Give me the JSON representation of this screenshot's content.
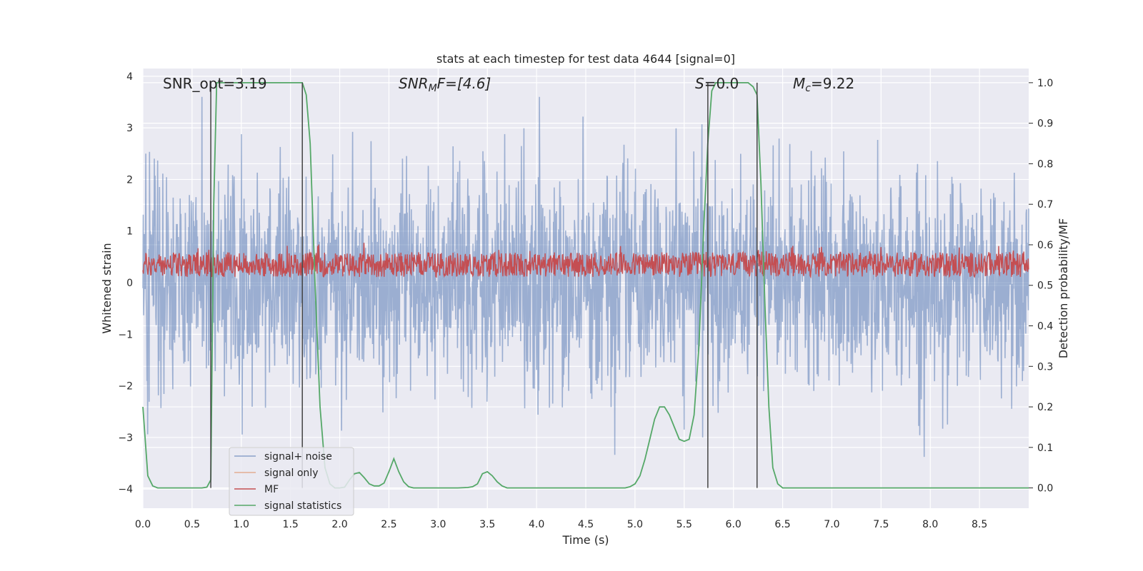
{
  "chart_data": {
    "type": "line",
    "title": "stats at each timestep for test data 4644 [signal=0]",
    "xlabel": "Time (s)",
    "ylabel_left": "Whitened strain",
    "ylabel_right": "Detection probability/MF",
    "xlim": [
      0,
      9.0
    ],
    "ylim_left": [
      -4.37,
      4.15
    ],
    "ylim_right": [
      -0.05,
      1.035
    ],
    "x_ticks": [
      "0.0",
      "0.5",
      "1.0",
      "1.5",
      "2.0",
      "2.5",
      "3.0",
      "3.5",
      "4.0",
      "4.5",
      "5.0",
      "5.5",
      "6.0",
      "6.5",
      "7.0",
      "7.5",
      "8.0",
      "8.5"
    ],
    "y_left_ticks": [
      "4",
      "3",
      "2",
      "1",
      "0",
      "−1",
      "−2",
      "−3",
      "−4"
    ],
    "y_right_ticks": [
      "1.0",
      "0.9",
      "0.8",
      "0.7",
      "0.6",
      "0.5",
      "0.4",
      "0.3",
      "0.2",
      "0.1",
      "0.0"
    ],
    "grid": true,
    "legend_position": "lower-left",
    "annotations": {
      "snr_opt": "SNR_opt=3.19",
      "snr_mf_main": "SNR",
      "snr_mf_sub": "M",
      "snr_mf_rest": "F=[4.6]",
      "s_var": "S",
      "s_rest": "=0.0",
      "mc_var": "M",
      "mc_sub": "c",
      "mc_rest": "=9.22"
    },
    "vertical_lines_x": [
      0.69,
      1.62,
      5.74,
      6.24
    ],
    "series": [
      {
        "name": "signal+ noise",
        "color": "#4c72b0",
        "description_stats": {
          "mean": 0.0,
          "std": 1.0,
          "range": [
            -3.8,
            3.6
          ]
        }
      },
      {
        "name": "signal only",
        "color": "#dd8452"
      },
      {
        "name": "MF",
        "color": "#c44e52",
        "description_stats": {
          "band": [
            0.05,
            0.65
          ]
        }
      },
      {
        "name": "signal statistics",
        "color": "#55a868",
        "x": [
          0.0,
          0.05,
          0.1,
          0.15,
          0.2,
          0.3,
          0.4,
          0.5,
          0.6,
          0.65,
          0.69,
          0.72,
          0.75,
          0.8,
          1.0,
          1.2,
          1.4,
          1.55,
          1.62,
          1.66,
          1.7,
          1.75,
          1.8,
          1.85,
          1.9,
          1.95,
          2.0,
          2.05,
          2.1,
          2.15,
          2.2,
          2.25,
          2.3,
          2.35,
          2.4,
          2.45,
          2.5,
          2.55,
          2.6,
          2.65,
          2.7,
          2.75,
          2.8,
          3.0,
          3.2,
          3.3,
          3.35,
          3.4,
          3.45,
          3.5,
          3.55,
          3.6,
          3.65,
          3.7,
          3.8,
          4.0,
          4.5,
          4.9,
          4.95,
          5.0,
          5.05,
          5.1,
          5.15,
          5.2,
          5.25,
          5.3,
          5.35,
          5.4,
          5.45,
          5.5,
          5.55,
          5.6,
          5.65,
          5.7,
          5.72,
          5.74,
          5.78,
          5.82,
          5.85,
          6.0,
          6.15,
          6.2,
          6.24,
          6.28,
          6.32,
          6.36,
          6.4,
          6.45,
          6.5,
          6.6,
          7.0,
          8.0,
          9.0
        ],
        "y": [
          0.2,
          0.03,
          0.005,
          0.0,
          0.0,
          0.0,
          0.0,
          0.0,
          0.0,
          0.002,
          0.02,
          0.7,
          1.0,
          1.0,
          1.0,
          1.0,
          1.0,
          1.0,
          1.0,
          0.97,
          0.85,
          0.5,
          0.2,
          0.05,
          0.01,
          0.0,
          0.0,
          0.002,
          0.02,
          0.035,
          0.038,
          0.025,
          0.01,
          0.005,
          0.005,
          0.012,
          0.04,
          0.072,
          0.04,
          0.015,
          0.003,
          0.0,
          0.0,
          0.0,
          0.0,
          0.001,
          0.003,
          0.01,
          0.035,
          0.04,
          0.03,
          0.015,
          0.005,
          0.0,
          0.0,
          0.0,
          0.0,
          0.0,
          0.003,
          0.01,
          0.03,
          0.07,
          0.12,
          0.17,
          0.2,
          0.2,
          0.18,
          0.15,
          0.12,
          0.115,
          0.12,
          0.18,
          0.35,
          0.65,
          0.75,
          0.85,
          0.98,
          1.0,
          1.0,
          1.0,
          1.0,
          0.99,
          0.97,
          0.75,
          0.45,
          0.2,
          0.05,
          0.01,
          0.0,
          0.0,
          0.0,
          0.0,
          0.0
        ]
      }
    ]
  }
}
